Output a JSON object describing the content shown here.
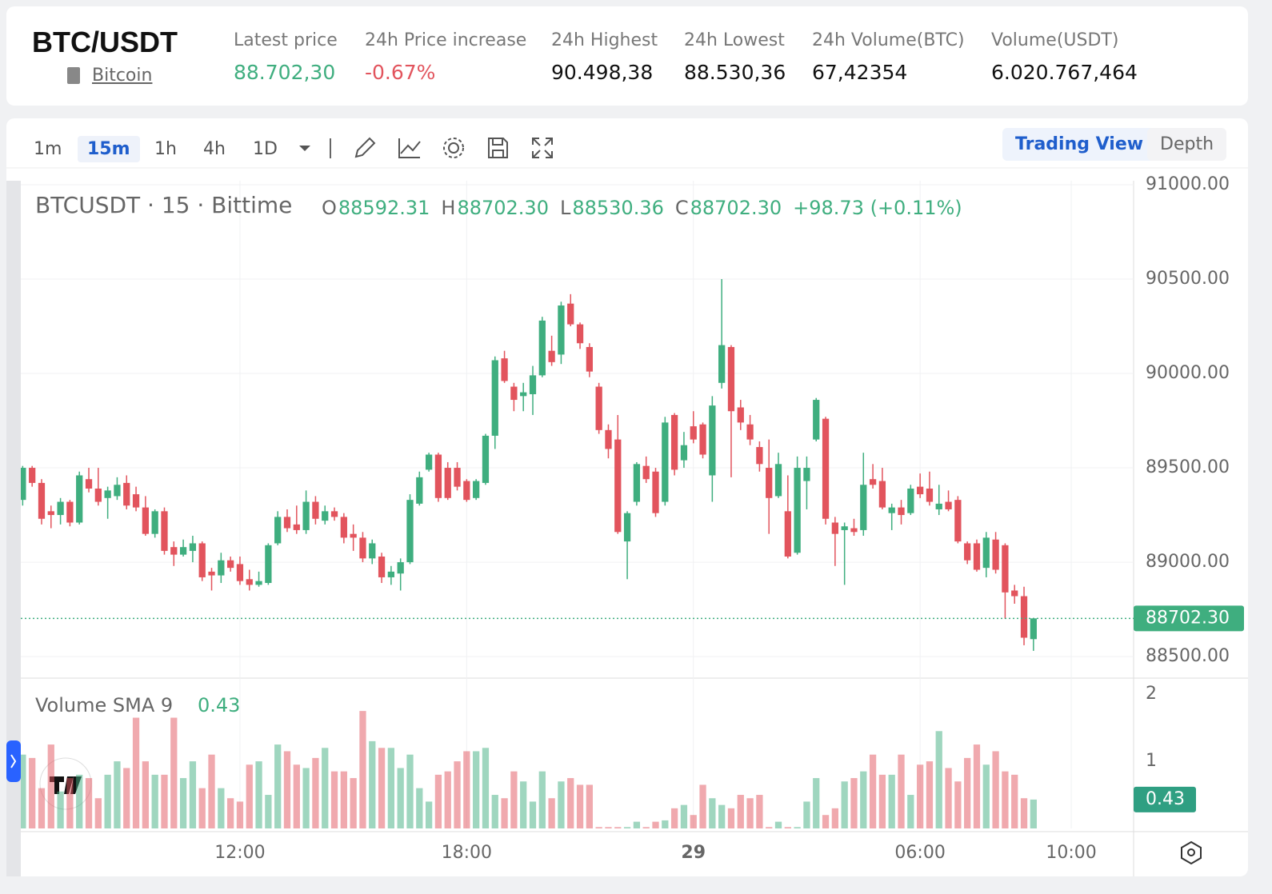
{
  "header": {
    "pair": "BTC/USDT",
    "coin": "Bitcoin",
    "stats": [
      {
        "label": "Latest price",
        "value": "88.702,30",
        "tone": "up"
      },
      {
        "label": "24h Price increase",
        "value": "-0.67%",
        "tone": "down"
      },
      {
        "label": "24h Highest",
        "value": "90.498,38",
        "tone": "plain"
      },
      {
        "label": "24h Lowest",
        "value": "88.530,36",
        "tone": "plain"
      },
      {
        "label": "24h Volume(BTC)",
        "value": "67,42354",
        "tone": "plain"
      },
      {
        "label": "Volume(USDT)",
        "value": "6.020.767,464",
        "tone": "plain"
      }
    ]
  },
  "toolbar": {
    "intervals": [
      "1m",
      "15m",
      "1h",
      "4h",
      "1D"
    ],
    "views": [
      "Trading View",
      "Depth"
    ]
  },
  "chart_data": {
    "type": "candlestick",
    "title": "BTCUSDT · 15 · Bittime",
    "legend": [
      {
        "key": "O",
        "text": "88592.31"
      },
      {
        "key": "H",
        "text": "88702.30"
      },
      {
        "key": "L",
        "text": "88530.36"
      },
      {
        "key": "C",
        "text": "88702.30"
      }
    ],
    "change": "+98.73 (+0.11%)",
    "up_color": "#3fae7f",
    "down_color": "#e2545d",
    "open": [
      89330,
      89500,
      89420,
      89270,
      89250,
      89320,
      89210,
      89440,
      89390,
      89340,
      89350,
      89420,
      89360,
      89290,
      89150,
      89270,
      89080,
      89040,
      89060,
      89100,
      88950,
      88930,
      89010,
      88990,
      88910,
      88880,
      88890,
      89100,
      89240,
      89200,
      89170,
      89320,
      89220,
      89270,
      89240,
      89150,
      89130,
      89020,
      89030,
      88920,
      88940,
      89000,
      89310,
      89490,
      89570,
      89500,
      89500,
      89430,
      89340,
      89420,
      89670,
      90080,
      89930,
      89880,
      89890,
      89990,
      90120,
      90100,
      90370,
      90260,
      90140,
      89930,
      89700,
      89650,
      89110,
      89320,
      89510,
      89480,
      89320,
      89780,
      89540,
      89720,
      89730,
      89460,
      89950,
      90140,
      89820,
      89730,
      89610,
      89500,
      89350,
      89270,
      89050,
      89430,
      89650,
      89760,
      89210,
      89170,
      89180,
      89170,
      89440,
      89430,
      89260,
      89290,
      89260,
      89400,
      89390,
      89280,
      89320,
      89330,
      89100,
      89100,
      88970,
      89120,
      89090,
      88850,
      88820,
      88592.31
    ],
    "high": [
      89510,
      89510,
      89440,
      89300,
      89340,
      89330,
      89480,
      89500,
      89500,
      89400,
      89450,
      89460,
      89400,
      89350,
      89280,
      89290,
      89110,
      89120,
      89140,
      89110,
      88970,
      89050,
      89030,
      89030,
      88960,
      88950,
      89100,
      89270,
      89280,
      89300,
      89380,
      89350,
      89300,
      89290,
      89260,
      89200,
      89160,
      89120,
      89050,
      88980,
      89020,
      89360,
      89480,
      89580,
      89580,
      89530,
      89530,
      89440,
      89440,
      89680,
      90090,
      90120,
      89950,
      89950,
      90040,
      90300,
      90200,
      90380,
      90420,
      90270,
      90160,
      89950,
      89730,
      89780,
      89270,
      89530,
      89560,
      89500,
      89770,
      89790,
      89690,
      89800,
      89740,
      89880,
      90500,
      90150,
      89860,
      89780,
      89640,
      89650,
      89580,
      89460,
      89560,
      89560,
      89870,
      89770,
      89240,
      89210,
      89230,
      89580,
      89520,
      89500,
      89310,
      89330,
      89410,
      89470,
      89480,
      89410,
      89380,
      89350,
      89110,
      89120,
      89160,
      89160,
      89100,
      88880,
      88870,
      88702.3
    ],
    "low": [
      89300,
      89400,
      89200,
      89180,
      89200,
      89190,
      89200,
      89370,
      89300,
      89230,
      89330,
      89280,
      89270,
      89140,
      89130,
      89040,
      88980,
      89030,
      89000,
      88900,
      88850,
      88890,
      88950,
      88880,
      88850,
      88870,
      88880,
      89090,
      89160,
      89150,
      89150,
      89200,
      89200,
      89220,
      89100,
      89060,
      89000,
      88990,
      88890,
      88880,
      88850,
      88990,
      89300,
      89480,
      89320,
      89330,
      89380,
      89320,
      89330,
      89410,
      89600,
      89950,
      89800,
      89800,
      89780,
      89980,
      90040,
      90050,
      90250,
      90130,
      89980,
      89680,
      89550,
      89150,
      88910,
      89300,
      89420,
      89240,
      89300,
      89460,
      89500,
      89630,
      89550,
      89320,
      89920,
      89450,
      89700,
      89620,
      89480,
      89150,
      89340,
      89020,
      89040,
      89280,
      89640,
      89200,
      88980,
      88880,
      89140,
      89140,
      89390,
      89280,
      89170,
      89200,
      89250,
      89340,
      89300,
      89250,
      89270,
      89100,
      88990,
      88950,
      88920,
      88940,
      88700,
      88780,
      88560,
      88530.36
    ],
    "close": [
      89500,
      89420,
      89230,
      89250,
      89320,
      89210,
      89460,
      89390,
      89320,
      89380,
      89410,
      89300,
      89290,
      89150,
      89270,
      89060,
      89040,
      89080,
      89100,
      88920,
      88930,
      89010,
      88970,
      88900,
      88880,
      88900,
      89090,
      89240,
      89180,
      89170,
      89320,
      89230,
      89270,
      89240,
      89130,
      89130,
      89020,
      89100,
      88920,
      88950,
      89000,
      89330,
      89450,
      89570,
      89340,
      89340,
      89400,
      89330,
      89430,
      89670,
      90070,
      89960,
      89860,
      89900,
      89990,
      90280,
      90060,
      90360,
      90260,
      90160,
      90010,
      89700,
      89600,
      89160,
      89260,
      89520,
      89440,
      89260,
      89740,
      89490,
      89620,
      89650,
      89570,
      89830,
      90150,
      89800,
      89740,
      89650,
      89520,
      89340,
      89520,
      89030,
      89500,
      89500,
      89860,
      89230,
      89150,
      89190,
      89160,
      89410,
      89410,
      89290,
      89290,
      89250,
      89390,
      89360,
      89320,
      89310,
      89280,
      89110,
      89010,
      88960,
      89130,
      88960,
      88840,
      88820,
      88600,
      88702.3
    ],
    "volume": [
      1.1,
      1.05,
      0.6,
      1.25,
      0.55,
      0.75,
      0.8,
      0.75,
      0.45,
      0.8,
      1.0,
      0.9,
      1.65,
      1.0,
      0.8,
      0.8,
      1.65,
      0.75,
      1.0,
      0.6,
      1.1,
      0.6,
      0.45,
      0.4,
      0.95,
      1.0,
      0.5,
      1.25,
      1.15,
      0.95,
      0.9,
      1.05,
      1.2,
      0.85,
      0.85,
      0.75,
      1.75,
      1.3,
      1.2,
      1.2,
      0.9,
      1.1,
      0.6,
      0.4,
      0.8,
      0.85,
      1.0,
      1.15,
      1.15,
      1.2,
      0.5,
      0.45,
      0.85,
      0.7,
      0.4,
      0.85,
      0.45,
      0.7,
      0.75,
      0.65,
      0.65,
      0.02,
      0.02,
      0.02,
      0.02,
      0.1,
      0.02,
      0.1,
      0.12,
      0.3,
      0.35,
      0.2,
      0.65,
      0.45,
      0.35,
      0.3,
      0.5,
      0.45,
      0.5,
      0.02,
      0.1,
      0.02,
      0.02,
      0.4,
      0.75,
      0.2,
      0.3,
      0.7,
      0.75,
      0.85,
      1.1,
      0.8,
      0.8,
      1.1,
      0.5,
      0.95,
      1.0,
      1.45,
      0.9,
      0.7,
      1.05,
      1.25,
      0.95,
      1.15,
      0.85,
      0.8,
      0.45,
      0.43
    ],
    "xlim": [
      -0.2,
      117.6
    ],
    "xticks": [
      {
        "value": 23,
        "label": "12:00"
      },
      {
        "value": 47,
        "label": "18:00"
      },
      {
        "value": 71,
        "label": "29"
      },
      {
        "value": 95,
        "label": "06:00"
      },
      {
        "value": 111,
        "label": "10:00"
      }
    ],
    "ylim": [
      88386,
      91021
    ],
    "yticks": [
      {
        "value": 88500,
        "label": "88500.00"
      },
      {
        "value": 89000,
        "label": "89000.00"
      },
      {
        "value": 89500,
        "label": "89500.00"
      },
      {
        "value": 90000,
        "label": "90000.00"
      },
      {
        "value": 90500,
        "label": "90500.00"
      },
      {
        "value": 91000,
        "label": "91000.00"
      }
    ],
    "last_price": {
      "value": 88702.3,
      "label": "88702.30"
    },
    "volume_title": "Volume SMA 9",
    "volume_sma": 0.43,
    "vlim": [
      0,
      2.24
    ],
    "vticks": [
      1,
      2
    ],
    "grid": true
  }
}
